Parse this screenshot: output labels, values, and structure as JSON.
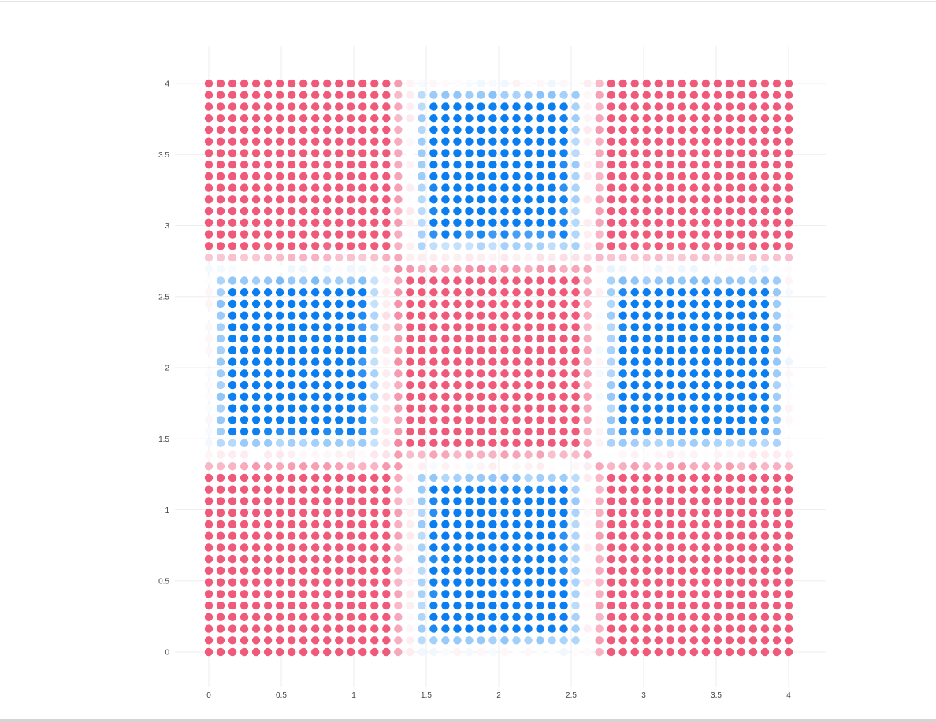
{
  "chart_data": {
    "type": "scatter",
    "title": "",
    "xlabel": "",
    "ylabel": "",
    "xlim": [
      0,
      4
    ],
    "ylim": [
      0,
      4
    ],
    "grid": true,
    "legend": "none",
    "x_tick_labels": [
      "0",
      "0.5",
      "1",
      "1.5",
      "2",
      "2.5",
      "3",
      "3.5",
      "4"
    ],
    "y_tick_labels": [
      "0",
      "0.5",
      "1",
      "1.5",
      "2",
      "2.5",
      "3",
      "3.5",
      "4"
    ],
    "point_grid": {
      "x_start": 0,
      "x_end": 4,
      "x_count": 50,
      "y_start": 0,
      "y_end": 4,
      "y_count": 50
    },
    "coloring": "diverging: blue where the classifier is positive, red where negative, fading to white at the decision boundary",
    "regions": {
      "blue": [
        {
          "x": [
            1.4,
            2.6
          ],
          "y": [
            0,
            1.3
          ]
        },
        {
          "x": [
            0,
            1.2
          ],
          "y": [
            1.4,
            2.7
          ]
        },
        {
          "x": [
            2.7,
            4
          ],
          "y": [
            1.4,
            2.7
          ]
        },
        {
          "x": [
            1.4,
            2.6
          ],
          "y": [
            2.8,
            4
          ]
        }
      ]
    },
    "colors": {
      "blue_strong": "#0a7ef0",
      "blue_light": "#8cc3f8",
      "red_strong": "#f05a7a",
      "red_light": "#f7aec0",
      "boundary": "#ffffff"
    }
  }
}
